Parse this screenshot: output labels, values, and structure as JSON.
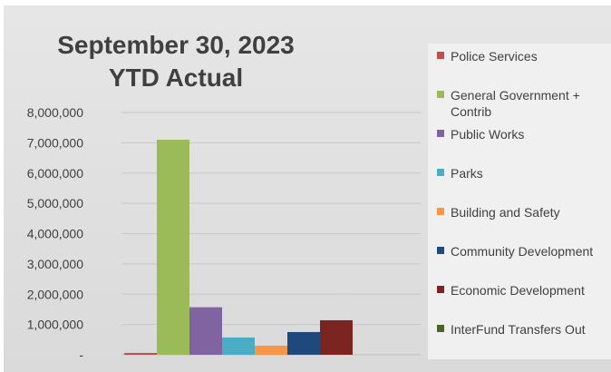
{
  "chart_data": {
    "type": "bar",
    "title": [
      "September 30, 2023",
      "YTD Actual"
    ],
    "xlabel": "",
    "ylabel": "",
    "ylim": [
      0,
      8000000
    ],
    "yticks": [
      0,
      1000000,
      2000000,
      3000000,
      4000000,
      5000000,
      6000000,
      7000000,
      8000000
    ],
    "ytick_labels": [
      "-",
      "1,000,000",
      "2,000,000",
      "3,000,000",
      "4,000,000",
      "5,000,000",
      "6,000,000",
      "7,000,000",
      "8,000,000"
    ],
    "grid": true,
    "legend_position": "right",
    "series": [
      {
        "name": "Police Services",
        "value": 60000,
        "color": "#c0504d"
      },
      {
        "name": "General Government + Contrib",
        "value": 7100000,
        "color": "#9bbb59"
      },
      {
        "name": "Public Works",
        "value": 1570000,
        "color": "#8064a2"
      },
      {
        "name": "Parks",
        "value": 570000,
        "color": "#4bacc6"
      },
      {
        "name": "Building and Safety",
        "value": 300000,
        "color": "#f79646"
      },
      {
        "name": "Community Development",
        "value": 750000,
        "color": "#1f497d"
      },
      {
        "name": "Economic Development",
        "value": 1140000,
        "color": "#7b2420"
      },
      {
        "name": "InterFund Transfers Out",
        "value": 0,
        "color": "#4f6228"
      }
    ]
  }
}
